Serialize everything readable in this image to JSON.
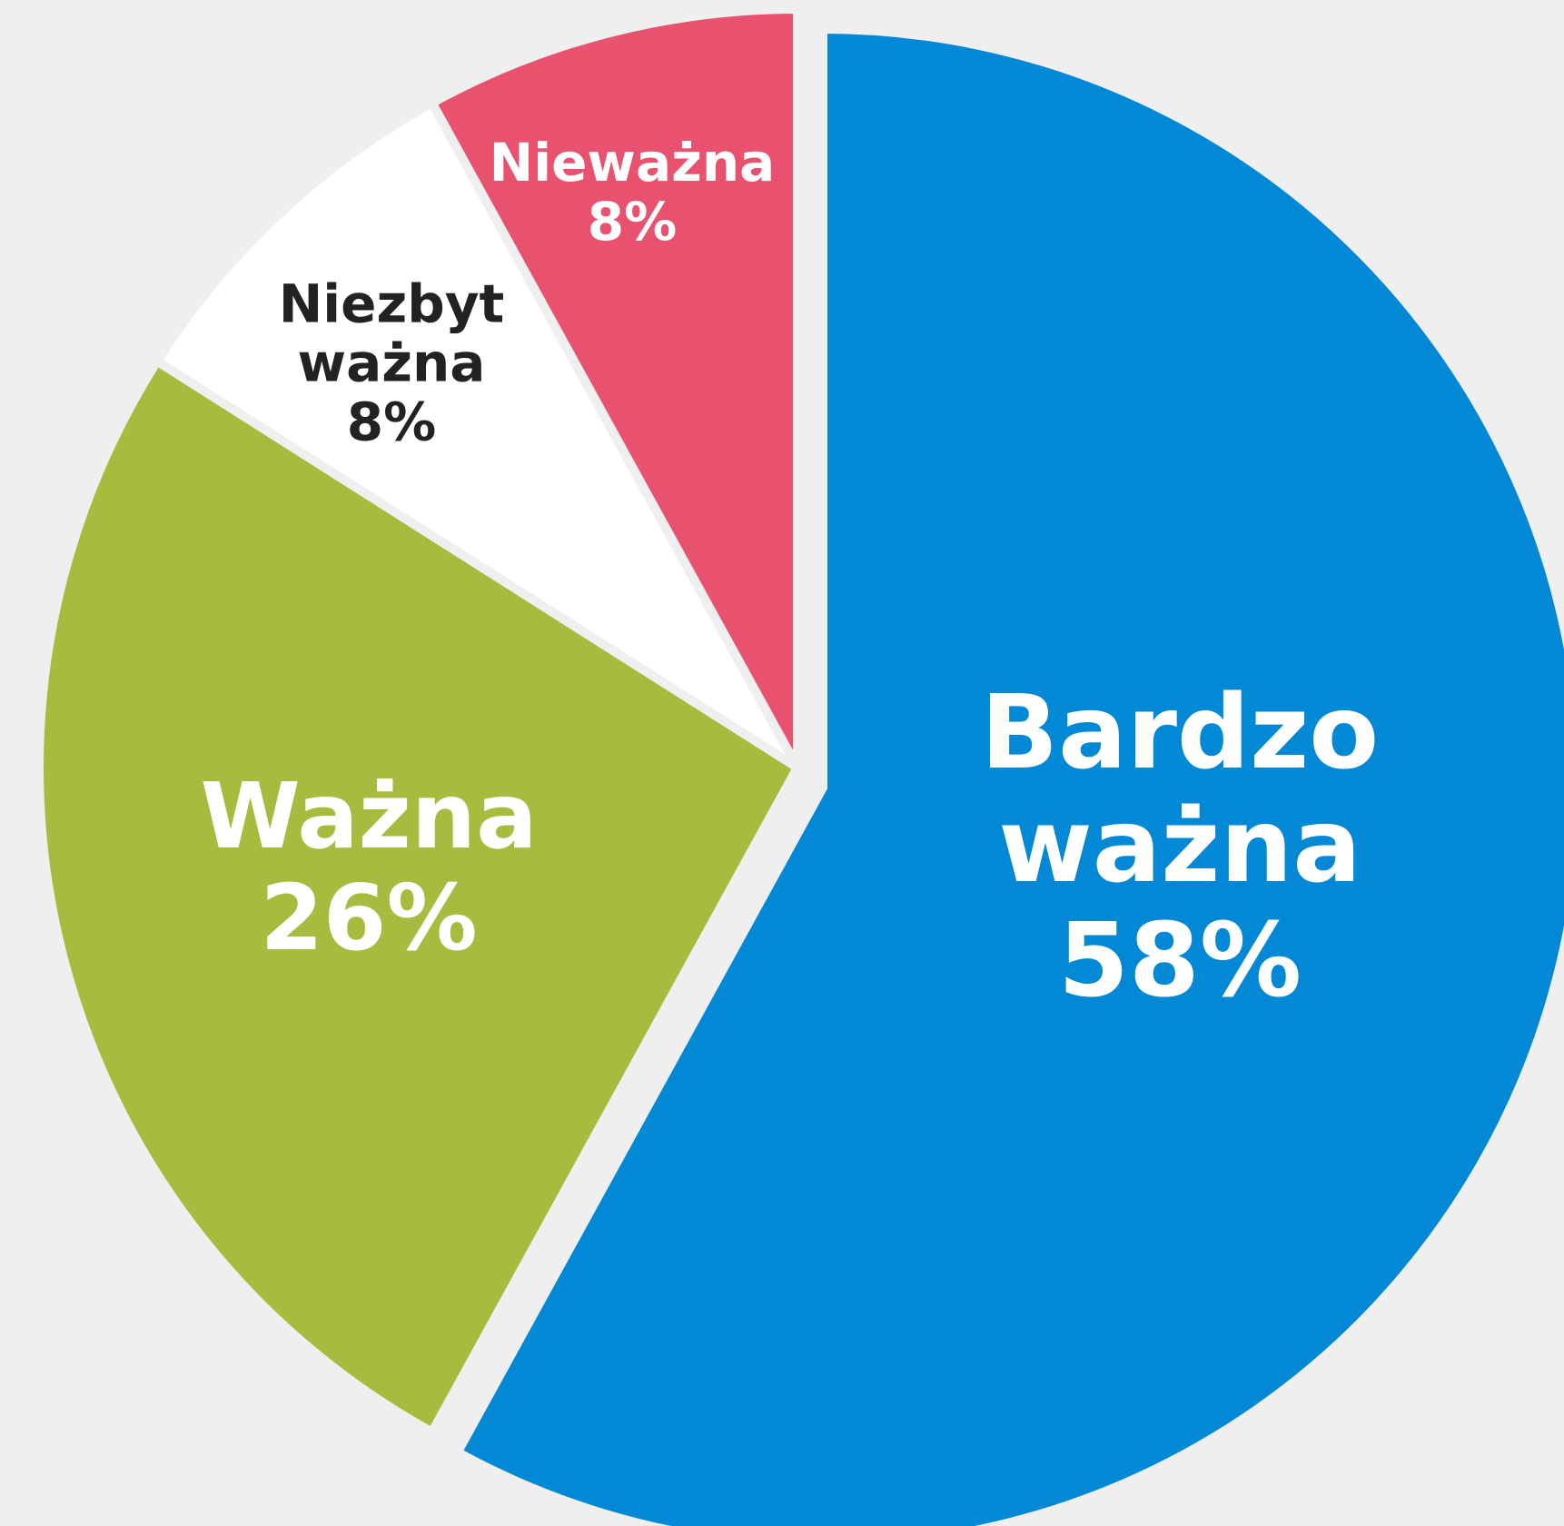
{
  "chart_data": {
    "type": "pie",
    "categories": [
      "Bardzo ważna",
      "Ważna",
      "Niezbyt ważna",
      "Nieważna"
    ],
    "values": [
      58,
      26,
      8,
      8
    ],
    "value_labels": [
      "58%",
      "26%",
      "8%",
      "8%"
    ],
    "colors": [
      "#0288d4",
      "#a8bb3e",
      "#ffffff",
      "#e8526f"
    ]
  }
}
